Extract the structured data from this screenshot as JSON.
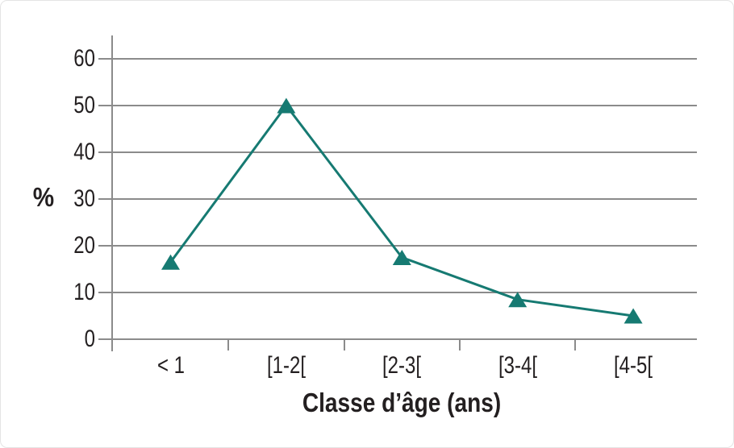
{
  "chart_data": {
    "type": "line",
    "categories": [
      "< 1",
      "[1-2[",
      "[2-3[",
      "[3-4[",
      "[4-5["
    ],
    "values": [
      16.5,
      50,
      17.5,
      8.5,
      5
    ],
    "title": "",
    "xlabel": "Classe d’âge (ans)",
    "ylabel": "%",
    "yticks": [
      0,
      10,
      20,
      30,
      40,
      50,
      60
    ],
    "ylim": [
      0,
      65
    ],
    "grid": true,
    "legend_position": "none",
    "marker": "triangle-up",
    "colors": {
      "line": "#167A72",
      "marker": "#167A72",
      "grid": "#8b8b8b",
      "axis": "#8b8b8b",
      "text": "#231f20",
      "card_border": "#e4e4e4",
      "background": "#ffffff"
    }
  }
}
